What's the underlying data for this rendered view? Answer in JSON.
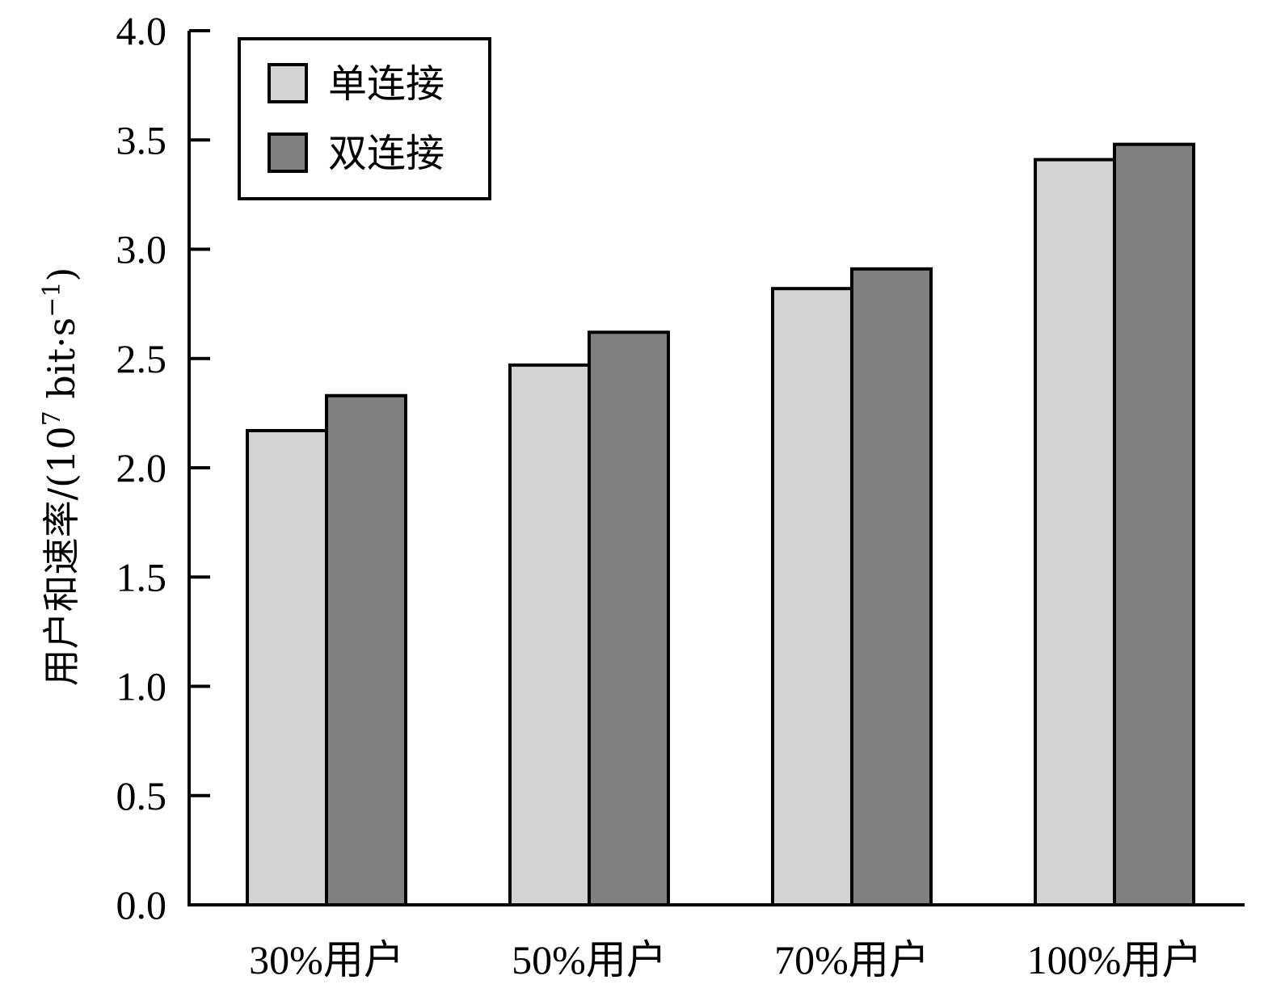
{
  "chart_data": {
    "type": "bar",
    "categories": [
      "30%用户",
      "50%用户",
      "70%用户",
      "100%用户"
    ],
    "series": [
      {
        "name": "单连接",
        "values": [
          2.17,
          2.47,
          2.82,
          3.41
        ],
        "color": "#d3d3d3"
      },
      {
        "name": "双连接",
        "values": [
          2.33,
          2.62,
          2.91,
          3.48
        ],
        "color": "#808080"
      }
    ],
    "y_ticks": [
      "0.0",
      "0.5",
      "1.0",
      "1.5",
      "2.0",
      "2.5",
      "3.0",
      "3.5",
      "4.0"
    ],
    "ylim": [
      0,
      4.0
    ],
    "ylabel": {
      "main": "用户和速率/(10",
      "exp1": "7",
      "mid": " bit·s",
      "exp2": "−1",
      "end": ")"
    },
    "xlabel": "",
    "title": "",
    "legend_position": "top-left",
    "grid": false
  }
}
